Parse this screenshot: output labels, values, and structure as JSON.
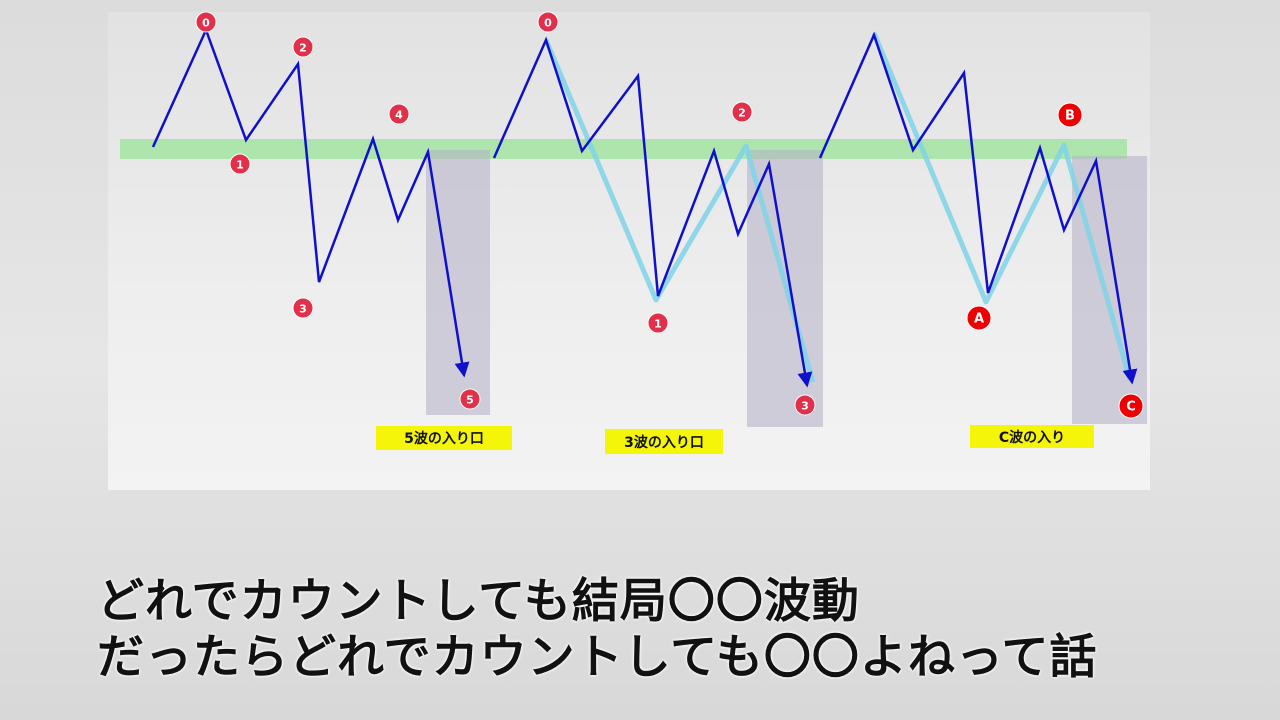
{
  "diagram": {
    "colors": {
      "wave": "#1010cc",
      "overlay": "#7fd3e8",
      "band": "#9ee39e",
      "zone": "#b8b4c8",
      "marker": "#e0304a",
      "marker_abc": "#ee0000",
      "tag": "#f5f50a"
    },
    "patterns": [
      {
        "markers": [
          "0",
          "1",
          "2",
          "3",
          "4",
          "5"
        ],
        "tag": "5波の入り口"
      },
      {
        "markers": [
          "0",
          "1",
          "2",
          "3"
        ],
        "tag": "3波の入り口"
      },
      {
        "markers": [
          "A",
          "B",
          "C"
        ],
        "tag": "C波の入り"
      }
    ]
  },
  "caption": {
    "line1": "どれでカウントしても結局〇〇波動",
    "line2": "だったらどれでカウントしても〇〇よねって話"
  }
}
